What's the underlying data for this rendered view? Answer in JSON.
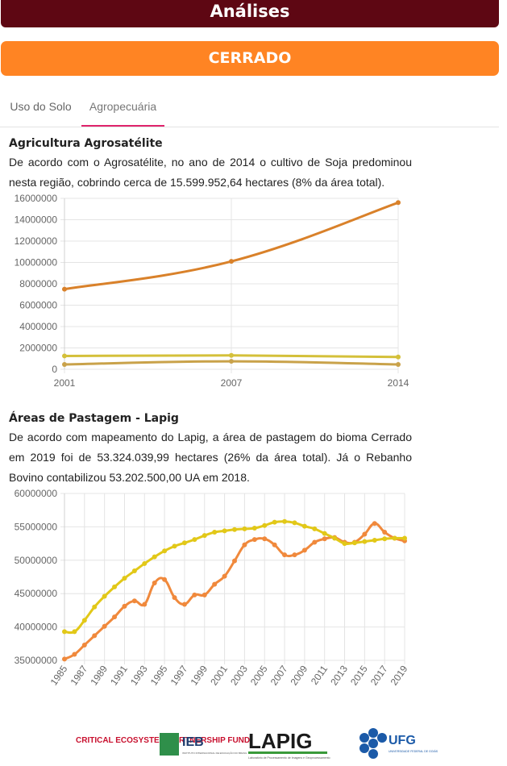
{
  "header": {
    "title": "Análises"
  },
  "biome": {
    "label": "CERRADO"
  },
  "tabs": [
    {
      "label": "Uso do Solo"
    },
    {
      "label": "Agropecuária"
    }
  ],
  "section1": {
    "title": "Agricultura Agrosatélite",
    "text": "De acordo com o Agrosatélite, no ano de 2014 o cultivo de Soja predominou nesta região, cobrindo cerca de 15.599.952,64 hectares (8% da área total)."
  },
  "section2": {
    "title": "Áreas de Pastagem - Lapig",
    "text": "De acordo com mapeamento do Lapig, a área de pastagem do bioma Cerrado em 2019 foi de 53.324.039,99 hectares (26% da área total). Já o Rebanho Bovino contabilizou 53.202.500,00 UA em 2018."
  },
  "colors": {
    "header_bg": "#5e0713",
    "biome_bg": "#ff8423",
    "tab_underline": "#e0246c"
  },
  "chart_data": [
    {
      "type": "line",
      "x": [
        "2001",
        "2007",
        "2014"
      ],
      "ylim": [
        0,
        16000000
      ],
      "yticks": [
        "16000000",
        "14000000",
        "12000000",
        "10000000",
        "8000000",
        "6000000",
        "4000000",
        "2000000",
        "0"
      ],
      "grid": true,
      "series": [
        {
          "color": "#d9812a",
          "values": [
            7500000,
            10100000,
            15600000
          ]
        },
        {
          "color": "#d4c03a",
          "values": [
            1250000,
            1300000,
            1150000
          ]
        },
        {
          "color": "#c9a24a",
          "values": [
            450000,
            750000,
            450000
          ]
        }
      ]
    },
    {
      "type": "line",
      "x": [
        "1985",
        "1986",
        "1987",
        "1988",
        "1989",
        "1990",
        "1991",
        "1992",
        "1993",
        "1994",
        "1995",
        "1996",
        "1997",
        "1998",
        "1999",
        "2000",
        "2001",
        "2002",
        "2003",
        "2004",
        "2005",
        "2006",
        "2007",
        "2008",
        "2009",
        "2010",
        "2011",
        "2012",
        "2013",
        "2014",
        "2015",
        "2016",
        "2017",
        "2018",
        "2019"
      ],
      "xticks": [
        "1985",
        "1987",
        "1989",
        "1991",
        "1993",
        "1995",
        "1997",
        "1999",
        "2001",
        "2003",
        "2005",
        "2007",
        "2009",
        "2011",
        "2013",
        "2015",
        "2017",
        "2019"
      ],
      "ylim": [
        35000000,
        60000000
      ],
      "yticks": [
        "60000000",
        "55000000",
        "50000000",
        "45000000",
        "40000000",
        "35000000"
      ],
      "grid": true,
      "series": [
        {
          "color": "#f0893c",
          "values": [
            35200000,
            35900000,
            37300000,
            38700000,
            40100000,
            41500000,
            43100000,
            43900000,
            43400000,
            46600000,
            47100000,
            44400000,
            43400000,
            44800000,
            44800000,
            46400000,
            47600000,
            49900000,
            52300000,
            53100000,
            53200000,
            52300000,
            50800000,
            50800000,
            51500000,
            52700000,
            53200000,
            53400000,
            52700000,
            52700000,
            53900000,
            55500000,
            54200000,
            53300000,
            52900000
          ]
        },
        {
          "color": "#e2c818",
          "values": [
            39300000,
            39300000,
            41000000,
            43000000,
            44600000,
            46000000,
            47300000,
            48400000,
            49500000,
            50500000,
            51400000,
            52100000,
            52600000,
            53100000,
            53700000,
            54200000,
            54400000,
            54600000,
            54700000,
            54800000,
            55200000,
            55700000,
            55800000,
            55600000,
            55100000,
            54700000,
            54000000,
            53300000,
            52500000,
            52600000,
            52800000,
            53000000,
            53200000,
            53300000,
            53300000
          ]
        }
      ]
    }
  ],
  "footer": {
    "logo1": "CRITICAL ECOSYSTEM PARTNERSHIP FUND",
    "logo2": "IEB",
    "logo2_sub": "INSTITUTO INTERNACIONAL DE EDUCAÇÃO DO BRASIL",
    "logo3": "LAPIG",
    "logo3_sub": "Laboratório de Processamento de Imagens e Geoprocessamento",
    "logo4": "UFG",
    "logo4_sub": "UNIVERSIDADE FEDERAL DE GOIÁS"
  }
}
